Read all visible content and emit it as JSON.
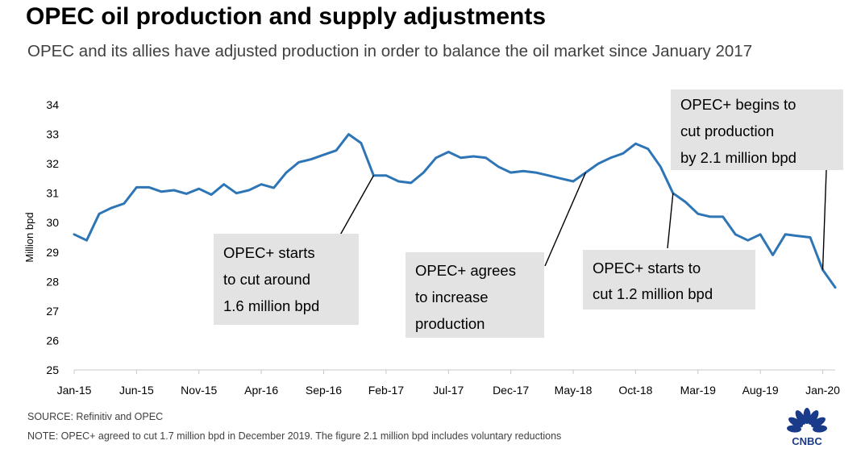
{
  "title": "OPEC oil production and supply adjustments",
  "subtitle": "OPEC and its allies have adjusted production in order to balance the oil market since January 2017",
  "source": "SOURCE: Refinitiv and OPEC",
  "note": "NOTE: OPEC+ agreed to cut 1.7 million bpd in December 2019. The figure 2.1 million bpd includes voluntary reductions",
  "logo": {
    "icon": "cnbc-peacock-icon",
    "text": "CNBC"
  },
  "colors": {
    "line": "#2e75b6",
    "annotation_bg": "#e3e3e3",
    "text_gray": "#404040"
  },
  "chart_data": {
    "type": "line",
    "ylabel": "Million bpd",
    "ylim": [
      25,
      34
    ],
    "yticks": [
      "25",
      "26",
      "27",
      "28",
      "29",
      "30",
      "31",
      "32",
      "33",
      "34"
    ],
    "xtick_labels": [
      "Jan-15",
      "Jun-15",
      "Nov-15",
      "Apr-16",
      "Sep-16",
      "Feb-17",
      "Jul-17",
      "Dec-17",
      "May-18",
      "Oct-18",
      "Mar-19",
      "Aug-19",
      "Jan-20"
    ],
    "grid": false,
    "series": [
      {
        "x": [
          "Jan-15",
          "Feb-15",
          "Mar-15",
          "Apr-15",
          "May-15",
          "Jun-15",
          "Jul-15",
          "Aug-15",
          "Sep-15",
          "Oct-15",
          "Nov-15",
          "Dec-15",
          "Jan-16",
          "Feb-16",
          "Mar-16",
          "Apr-16",
          "May-16",
          "Jun-16",
          "Jul-16",
          "Aug-16",
          "Sep-16",
          "Oct-16",
          "Nov-16",
          "Dec-16",
          "Jan-17",
          "Feb-17",
          "Mar-17",
          "Apr-17",
          "May-17",
          "Jun-17",
          "Jul-17",
          "Aug-17",
          "Sep-17",
          "Oct-17",
          "Nov-17",
          "Dec-17",
          "Jan-18",
          "Feb-18",
          "Mar-18",
          "Apr-18",
          "May-18",
          "Jun-18",
          "Jul-18",
          "Aug-18",
          "Sep-18",
          "Oct-18",
          "Nov-18",
          "Dec-18",
          "Jan-19",
          "Feb-19",
          "Mar-19",
          "Apr-19",
          "May-19",
          "Jun-19",
          "Jul-19",
          "Aug-19",
          "Sep-19",
          "Oct-19",
          "Nov-19",
          "Dec-19",
          "Jan-20",
          "Feb-20"
        ],
        "values": [
          29.6,
          29.4,
          30.3,
          30.5,
          30.65,
          31.2,
          31.2,
          31.05,
          31.1,
          30.98,
          31.15,
          30.95,
          31.3,
          31.0,
          31.1,
          31.3,
          31.18,
          31.7,
          32.05,
          32.15,
          32.3,
          32.45,
          33.0,
          32.7,
          31.6,
          31.6,
          31.4,
          31.35,
          31.7,
          32.2,
          32.4,
          32.2,
          32.25,
          32.2,
          31.9,
          31.7,
          31.75,
          31.7,
          31.6,
          31.5,
          31.4,
          31.7,
          32.0,
          32.2,
          32.35,
          32.68,
          32.5,
          31.9,
          31.0,
          30.7,
          30.3,
          30.2,
          30.2,
          29.6,
          29.4,
          29.6,
          28.9,
          29.6,
          29.55,
          29.5,
          28.4,
          27.8
        ]
      }
    ],
    "annotations": [
      {
        "lines": [
          "OPEC+ starts",
          "to cut around",
          "1.6 million bpd"
        ],
        "point": "Jan-17"
      },
      {
        "lines": [
          "OPEC+ agrees",
          "to increase",
          "production"
        ],
        "point": "Jun-18"
      },
      {
        "lines": [
          "OPEC+ starts to",
          "cut 1.2 million bpd"
        ],
        "point": "Jan-19"
      },
      {
        "lines": [
          "OPEC+ begins to",
          "cut production",
          "by 2.1 million bpd"
        ],
        "point": "Jan-20"
      }
    ]
  }
}
